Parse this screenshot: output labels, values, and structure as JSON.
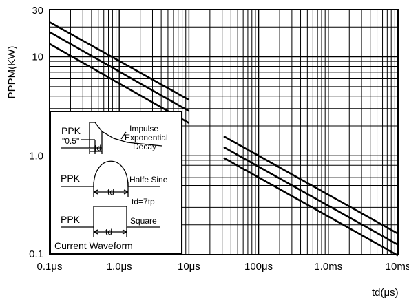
{
  "chart_data": {
    "type": "line",
    "title": "",
    "xlabel": "td(μs)",
    "ylabel": "PPPM(KW)",
    "x_scale": "log",
    "y_scale": "log",
    "xlim": [
      0.1,
      10000
    ],
    "ylim": [
      0.1,
      30
    ],
    "grid": true,
    "x_ticks": [
      {
        "value": 0.1,
        "label": "0.1μs"
      },
      {
        "value": 1,
        "label": "1.0μs"
      },
      {
        "value": 10,
        "label": "10μs"
      },
      {
        "value": 100,
        "label": "100μs"
      },
      {
        "value": 1000,
        "label": "1.0ms"
      },
      {
        "value": 10000,
        "label": "10ms"
      }
    ],
    "y_ticks": [
      {
        "value": 0.1,
        "label": "0.1"
      },
      {
        "value": 1,
        "label": "1.0"
      },
      {
        "value": 10,
        "label": "10"
      },
      {
        "value": 30,
        "label": "30"
      }
    ],
    "series": [
      {
        "segments": [
          {
            "x": [
              0.1,
              10
            ],
            "y": [
              22.4,
              3.67
            ]
          },
          {
            "x": [
              31.6,
              10000
            ],
            "y": [
              1.57,
              0.163
            ]
          }
        ]
      },
      {
        "segments": [
          {
            "x": [
              0.1,
              10
            ],
            "y": [
              17.8,
              2.83
            ]
          },
          {
            "x": [
              31.6,
              10000
            ],
            "y": [
              1.22,
              0.126
            ]
          }
        ]
      },
      {
        "segments": [
          {
            "x": [
              0.1,
              10
            ],
            "y": [
              13.5,
              2.14
            ]
          },
          {
            "x": [
              31.6,
              10000
            ],
            "y": [
              0.95,
              0.098
            ]
          }
        ]
      }
    ],
    "inset": {
      "title": "Current Waveform",
      "impulse": {
        "label": "PPK",
        "half_label": "\"0.5\"",
        "td_label": "td",
        "desc": [
          "Impulse",
          "Exponential",
          "Decay"
        ]
      },
      "sine": {
        "label": "PPK",
        "td_label": "td",
        "desc": "Halfe Sine",
        "note": "td=7tp"
      },
      "square": {
        "label": "PPK",
        "td_label": "td",
        "desc": "Square"
      }
    }
  }
}
